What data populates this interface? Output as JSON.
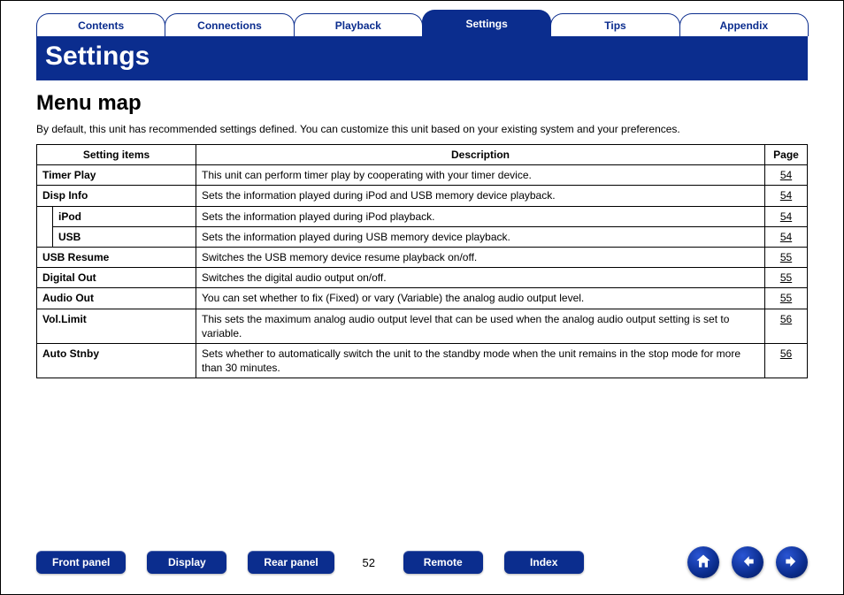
{
  "colors": {
    "brand": "#0b2d8e",
    "text": "#000000",
    "bg": "#ffffff"
  },
  "tabs": [
    {
      "label": "Contents",
      "active": false
    },
    {
      "label": "Connections",
      "active": false
    },
    {
      "label": "Playback",
      "active": false
    },
    {
      "label": "Settings",
      "active": true
    },
    {
      "label": "Tips",
      "active": false
    },
    {
      "label": "Appendix",
      "active": false
    }
  ],
  "title_bar": "Settings",
  "section_title": "Menu map",
  "intro": "By default, this unit has recommended settings defined. You can customize this unit based on your existing system and your preferences.",
  "table": {
    "headers": {
      "items": "Setting items",
      "description": "Description",
      "page": "Page"
    },
    "rows": [
      {
        "item": "Timer Play",
        "bold": true,
        "indent": false,
        "description": "This unit can perform timer play by cooperating with your timer device.",
        "page": "54"
      },
      {
        "item": "Disp Info",
        "bold": true,
        "indent": false,
        "description": "Sets the information played during iPod and USB memory device playback.",
        "page": "54"
      },
      {
        "item": "iPod",
        "bold": true,
        "indent": true,
        "description": "Sets the information played during iPod playback.",
        "page": "54"
      },
      {
        "item": "USB",
        "bold": true,
        "indent": true,
        "description": "Sets the information played during USB memory device playback.",
        "page": "54"
      },
      {
        "item": "USB Resume",
        "bold": true,
        "indent": false,
        "description": "Switches the USB memory device resume playback on/off.",
        "page": "55"
      },
      {
        "item": "Digital Out",
        "bold": true,
        "indent": false,
        "description": "Switches the digital audio output on/off.",
        "page": "55"
      },
      {
        "item": "Audio Out",
        "bold": true,
        "indent": false,
        "description": "You can set whether to fix (Fixed) or vary (Variable) the analog audio output level.",
        "page": "55"
      },
      {
        "item": "Vol.Limit",
        "bold": true,
        "indent": false,
        "description": "This sets the maximum analog audio output level that can be used when the analog audio output setting is set to variable.",
        "page": "56"
      },
      {
        "item": "Auto Stnby",
        "bold": true,
        "indent": false,
        "description": "Sets whether to automatically switch the unit to the standby mode when the unit remains in the stop mode for more than 30 minutes.",
        "page": "56"
      }
    ]
  },
  "footer": {
    "buttons_left": [
      "Front panel",
      "Display",
      "Rear panel"
    ],
    "page_number": "52",
    "buttons_right": [
      "Remote",
      "Index"
    ],
    "nav_icons": [
      "home-icon",
      "back-icon",
      "forward-icon"
    ]
  }
}
